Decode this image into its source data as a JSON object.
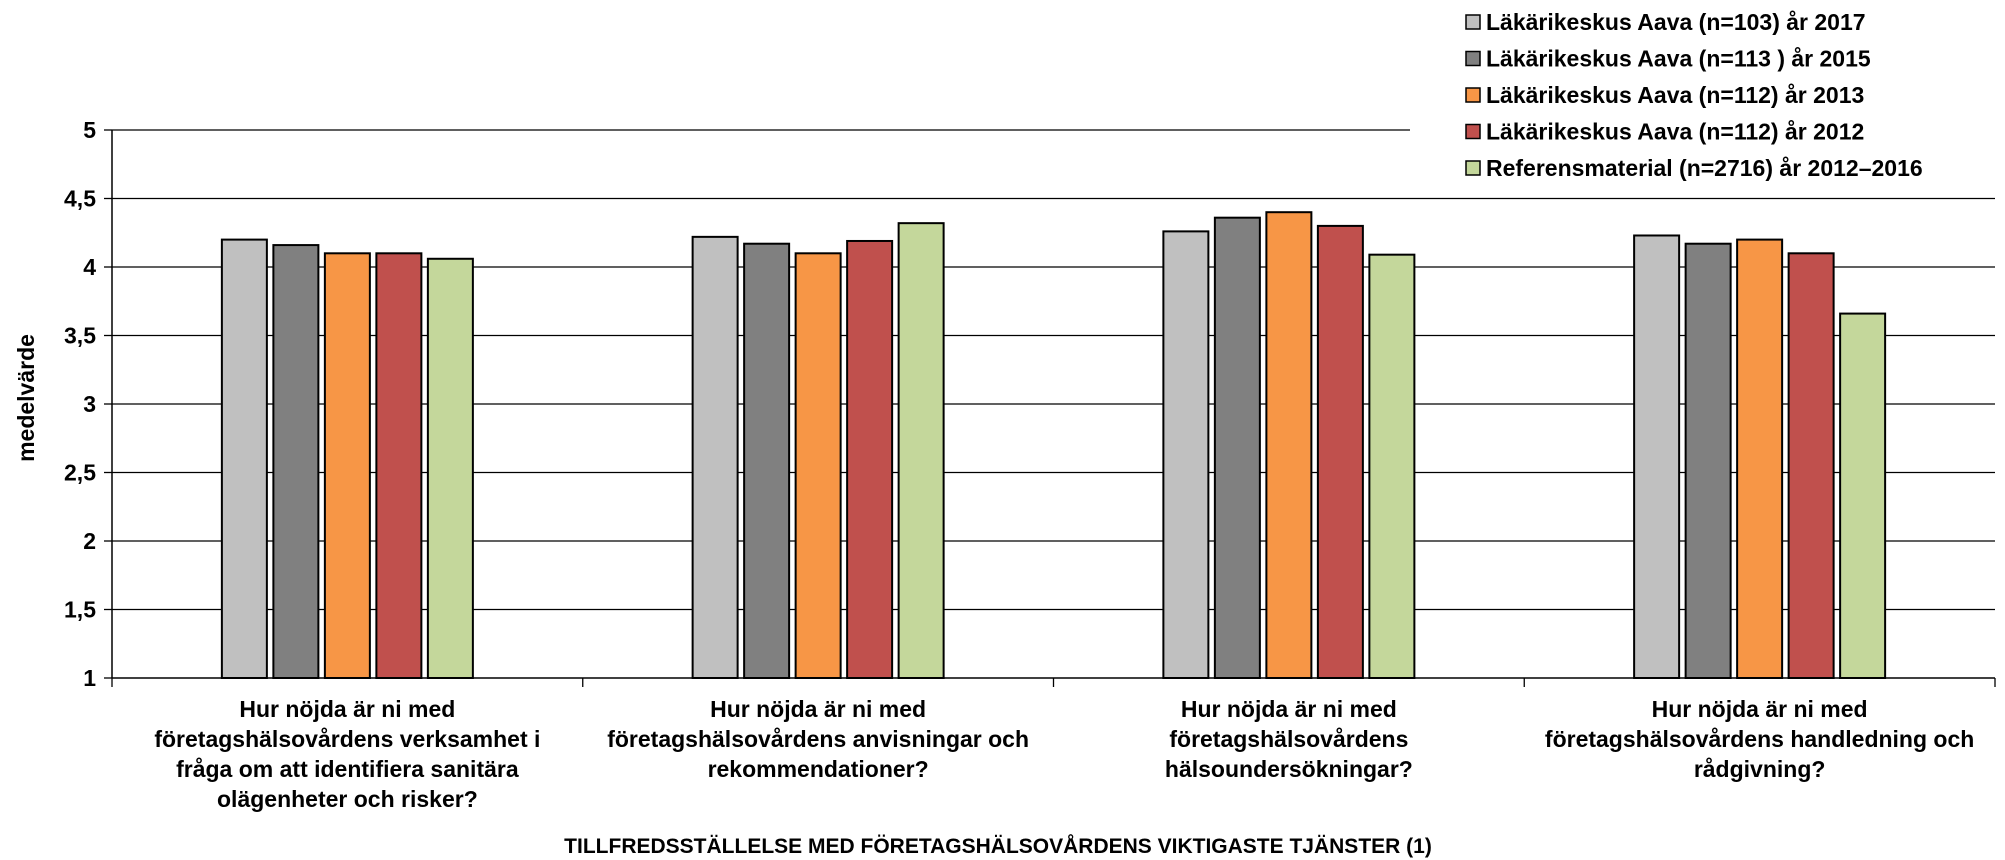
{
  "chart_data": {
    "type": "bar",
    "title": "",
    "xlabel": "TILLFREDSSTÄLLELSE MED FÖRETAGSHÄLSOVÅRDENS VIKTIGASTE TJÄNSTER (1)",
    "ylabel": "medelvärde",
    "ylim": [
      1,
      5
    ],
    "yticks": [
      "1",
      "1,5",
      "2",
      "2,5",
      "3",
      "3,5",
      "4",
      "4,5",
      "5"
    ],
    "grid": true,
    "legend_position": "top-right",
    "categories": [
      [
        "Hur nöjda är ni med",
        "företagshälsovårdens verksamhet i",
        "fråga om att identifiera sanitära",
        "olägenheter och risker?"
      ],
      [
        "Hur nöjda är ni med",
        "företagshälsovårdens anvisningar och",
        "rekommendationer?"
      ],
      [
        "Hur nöjda är ni med",
        "företagshälsovårdens",
        "hälsoundersökningar?"
      ],
      [
        "Hur nöjda är ni med",
        "företagshälsovårdens handledning och",
        "rådgivning?"
      ]
    ],
    "series": [
      {
        "name": "Läkärikeskus Aava (n=103)  år 2017",
        "color": "#c0c0c0",
        "values": [
          4.2,
          4.22,
          4.26,
          4.23
        ]
      },
      {
        "name": "Läkärikeskus Aava (n=113 ) år 2015",
        "color": "#808080",
        "values": [
          4.16,
          4.17,
          4.36,
          4.17
        ]
      },
      {
        "name": "Läkärikeskus Aava (n=112)  år 2013",
        "color": "#f79646",
        "values": [
          4.1,
          4.1,
          4.4,
          4.2
        ]
      },
      {
        "name": "Läkärikeskus Aava (n=112)  år 2012",
        "color": "#c0504d",
        "values": [
          4.1,
          4.19,
          4.3,
          4.1
        ]
      },
      {
        "name": "Referensmaterial (n=2716)  år 2012–2016",
        "color": "#c4d79b",
        "values": [
          4.06,
          4.32,
          4.09,
          3.66
        ]
      }
    ]
  }
}
